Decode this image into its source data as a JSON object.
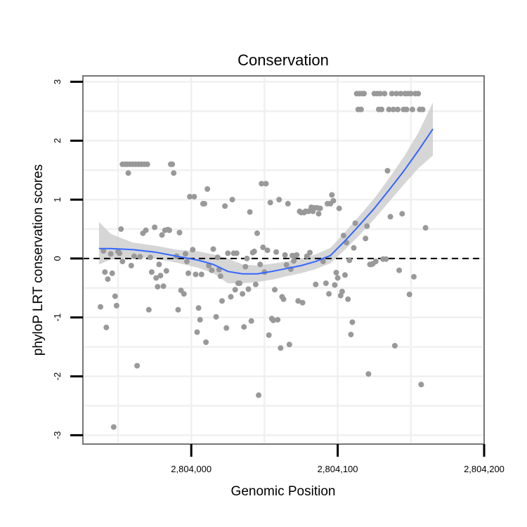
{
  "chart_data": {
    "type": "scatter",
    "title": "Conservation",
    "xlabel": "Genomic Position",
    "ylabel": "phyloP LRT conservation scores",
    "xlim": [
      2803926,
      2804200
    ],
    "ylim": [
      -3.15,
      3.1
    ],
    "x_ticks": [
      {
        "value": 2804000,
        "label": "2,804,000"
      },
      {
        "value": 2804100,
        "label": "2,804,100"
      },
      {
        "value": 2804200,
        "label": "2,804,200"
      }
    ],
    "y_ticks": [
      {
        "value": 3,
        "label": "3"
      },
      {
        "value": 2,
        "label": "2"
      },
      {
        "value": 1,
        "label": "1"
      },
      {
        "value": 0,
        "label": "0"
      },
      {
        "value": -1,
        "label": "-1"
      },
      {
        "value": -2,
        "label": "-2"
      },
      {
        "value": -3,
        "label": "-3"
      }
    ],
    "grid": true,
    "reference_line": {
      "y": 0,
      "style": "dashed"
    },
    "colors": {
      "points": "#999999",
      "smooth": "#3366FF",
      "band": "#cccccc",
      "frame": "#777777"
    },
    "points": [
      [
        2803938,
        -0.82
      ],
      [
        2803940,
        0.13
      ],
      [
        2803941,
        -0.23
      ],
      [
        2803942,
        -1.17
      ],
      [
        2803943,
        -0.35
      ],
      [
        2803945,
        0.08
      ],
      [
        2803946,
        -0.25
      ],
      [
        2803947,
        -2.86
      ],
      [
        2803948,
        -0.64
      ],
      [
        2803949,
        -0.8
      ],
      [
        2803950,
        0.12
      ],
      [
        2803951,
        0.09
      ],
      [
        2803952,
        0.5
      ],
      [
        2803953,
        -0.05
      ],
      [
        2803953,
        1.6
      ],
      [
        2803955,
        1.6
      ],
      [
        2803956,
        1.6
      ],
      [
        2803957,
        1.45
      ],
      [
        2803958,
        1.6
      ],
      [
        2803959,
        -0.12
      ],
      [
        2803960,
        1.6
      ],
      [
        2803961,
        0.04
      ],
      [
        2803962,
        1.6
      ],
      [
        2803963,
        -1.82
      ],
      [
        2803964,
        1.6
      ],
      [
        2803965,
        0.03
      ],
      [
        2803966,
        1.6
      ],
      [
        2803967,
        0.43
      ],
      [
        2803968,
        1.6
      ],
      [
        2803969,
        0.48
      ],
      [
        2803970,
        1.6
      ],
      [
        2803971,
        -0.87
      ],
      [
        2803972,
        0.02
      ],
      [
        2803973,
        -0.23
      ],
      [
        2803975,
        0.53
      ],
      [
        2803976,
        -0.33
      ],
      [
        2803977,
        -0.48
      ],
      [
        2803978,
        -0.1
      ],
      [
        2803979,
        -0.29
      ],
      [
        2803980,
        0.4
      ],
      [
        2803981,
        -0.47
      ],
      [
        2803982,
        0.48
      ],
      [
        2803983,
        -0.21
      ],
      [
        2803984,
        0.49
      ],
      [
        2803985,
        0.48
      ],
      [
        2803986,
        1.6
      ],
      [
        2803987,
        1.6
      ],
      [
        2803988,
        1.45
      ],
      [
        2803990,
        0.04
      ],
      [
        2803991,
        -0.87
      ],
      [
        2803992,
        0.44
      ],
      [
        2803993,
        -0.54
      ],
      [
        2803995,
        -0.6
      ],
      [
        2803996,
        0.08
      ],
      [
        2803997,
        -0.05
      ],
      [
        2803998,
        -0.25
      ],
      [
        2803999,
        1.05
      ],
      [
        2804001,
        0.15
      ],
      [
        2804002,
        1.05
      ],
      [
        2804003,
        -0.27
      ],
      [
        2804004,
        -1.25
      ],
      [
        2804005,
        -0.84
      ],
      [
        2804006,
        -1.04
      ],
      [
        2804007,
        -0.27
      ],
      [
        2804008,
        0.93
      ],
      [
        2804009,
        0.93
      ],
      [
        2804010,
        -1.42
      ],
      [
        2804011,
        1.18
      ],
      [
        2804012,
        -0.12
      ],
      [
        2804014,
        -0.2
      ],
      [
        2804015,
        0.16
      ],
      [
        2804017,
        -0.99
      ],
      [
        2804018,
        0.02
      ],
      [
        2804019,
        -0.19
      ],
      [
        2804020,
        -0.3
      ],
      [
        2804021,
        -0.72
      ],
      [
        2804023,
        0.89
      ],
      [
        2804024,
        -1.18
      ],
      [
        2804025,
        0.09
      ],
      [
        2804027,
        -0.65
      ],
      [
        2804028,
        1.0
      ],
      [
        2804029,
        0.09
      ],
      [
        2804030,
        -0.53
      ],
      [
        2804031,
        0.09
      ],
      [
        2804032,
        -0.42
      ],
      [
        2804033,
        -0.42
      ],
      [
        2804035,
        -0.6
      ],
      [
        2804036,
        -1.16
      ],
      [
        2804037,
        -0.14
      ],
      [
        2804038,
        0.0
      ],
      [
        2804039,
        -0.52
      ],
      [
        2804040,
        0.79
      ],
      [
        2804041,
        -1.06
      ],
      [
        2804042,
        0.1
      ],
      [
        2804043,
        0.12
      ],
      [
        2804044,
        -0.44
      ],
      [
        2804045,
        0.43
      ],
      [
        2804046,
        -2.32
      ],
      [
        2804047,
        -0.1
      ],
      [
        2804048,
        1.27
      ],
      [
        2804049,
        0.19
      ],
      [
        2804050,
        -0.23
      ],
      [
        2804051,
        1.27
      ],
      [
        2804052,
        0.14
      ],
      [
        2804053,
        -1.3
      ],
      [
        2804054,
        0.95
      ],
      [
        2804055,
        -1.02
      ],
      [
        2804056,
        -1.05
      ],
      [
        2804057,
        -0.53
      ],
      [
        2804058,
        0.11
      ],
      [
        2804059,
        -1.04
      ],
      [
        2804060,
        1.0
      ],
      [
        2804061,
        -1.52
      ],
      [
        2804062,
        -0.65
      ],
      [
        2804063,
        -0.69
      ],
      [
        2804064,
        0.06
      ],
      [
        2804065,
        -0.11
      ],
      [
        2804066,
        0.93
      ],
      [
        2804067,
        -1.46
      ],
      [
        2804068,
        -0.18
      ],
      [
        2804069,
        0.05
      ],
      [
        2804070,
        -0.04
      ],
      [
        2804071,
        0.05
      ],
      [
        2804072,
        0.06
      ],
      [
        2804073,
        -0.72
      ],
      [
        2804074,
        0.8
      ],
      [
        2804075,
        0.78
      ],
      [
        2804076,
        -0.75
      ],
      [
        2804077,
        0.78
      ],
      [
        2804078,
        0.8
      ],
      [
        2804079,
        0.04
      ],
      [
        2804080,
        0.8
      ],
      [
        2804081,
        0.1
      ],
      [
        2804082,
        0.87
      ],
      [
        2804083,
        0.8
      ],
      [
        2804084,
        0.86
      ],
      [
        2804085,
        -0.44
      ],
      [
        2804086,
        0.86
      ],
      [
        2804087,
        0.76
      ],
      [
        2804088,
        0.85
      ],
      [
        2804090,
        -0.05
      ],
      [
        2804092,
        -0.42
      ],
      [
        2804093,
        0.93
      ],
      [
        2804094,
        -0.6
      ],
      [
        2804095,
        0.93
      ],
      [
        2804096,
        1.08
      ],
      [
        2804097,
        0.98
      ],
      [
        2804098,
        -0.45
      ],
      [
        2804099,
        -0.24
      ],
      [
        2804100,
        -0.33
      ],
      [
        2804101,
        0.85
      ],
      [
        2804102,
        -0.63
      ],
      [
        2804103,
        -0.56
      ],
      [
        2804104,
        0.39
      ],
      [
        2804105,
        -0.28
      ],
      [
        2804106,
        0.27
      ],
      [
        2804107,
        -0.69
      ],
      [
        2804108,
        -0.03
      ],
      [
        2804109,
        -1.29
      ],
      [
        2804110,
        -1.08
      ],
      [
        2804111,
        0.18
      ],
      [
        2804112,
        0.6
      ],
      [
        2804113,
        2.8
      ],
      [
        2804114,
        2.53
      ],
      [
        2804115,
        2.8
      ],
      [
        2804116,
        2.53
      ],
      [
        2804117,
        2.8
      ],
      [
        2804118,
        2.8
      ],
      [
        2804119,
        0.34
      ],
      [
        2804120,
        0.55
      ],
      [
        2804121,
        -1.96
      ],
      [
        2804122,
        -0.1
      ],
      [
        2804123,
        -0.1
      ],
      [
        2804124,
        -0.09
      ],
      [
        2804125,
        2.8
      ],
      [
        2804126,
        -0.05
      ],
      [
        2804127,
        2.8
      ],
      [
        2804128,
        2.53
      ],
      [
        2804129,
        2.8
      ],
      [
        2804130,
        2.53
      ],
      [
        2804131,
        -0.01
      ],
      [
        2804132,
        2.8
      ],
      [
        2804133,
        -0.01
      ],
      [
        2804134,
        1.49
      ],
      [
        2804135,
        2.53
      ],
      [
        2804136,
        0.71
      ],
      [
        2804137,
        2.8
      ],
      [
        2804138,
        2.53
      ],
      [
        2804139,
        -1.48
      ],
      [
        2804140,
        2.8
      ],
      [
        2804141,
        2.53
      ],
      [
        2804142,
        -0.2
      ],
      [
        2804143,
        2.8
      ],
      [
        2804144,
        0.76
      ],
      [
        2804145,
        2.53
      ],
      [
        2804146,
        2.8
      ],
      [
        2804147,
        2.53
      ],
      [
        2804148,
        2.8
      ],
      [
        2804149,
        -0.61
      ],
      [
        2804150,
        2.8
      ],
      [
        2804151,
        2.53
      ],
      [
        2804152,
        -0.31
      ],
      [
        2804153,
        2.8
      ],
      [
        2804155,
        2.8
      ],
      [
        2804156,
        2.53
      ],
      [
        2804157,
        -2.14
      ],
      [
        2804158,
        2.53
      ],
      [
        2804160,
        0.52
      ]
    ],
    "smooth": [
      {
        "x": 2803937,
        "y": 0.17,
        "lo": -0.1,
        "hi": 0.62
      },
      {
        "x": 2803945,
        "y": 0.17,
        "lo": -0.02,
        "hi": 0.42
      },
      {
        "x": 2803960,
        "y": 0.15,
        "lo": 0.03,
        "hi": 0.27
      },
      {
        "x": 2803975,
        "y": 0.11,
        "lo": 0.0,
        "hi": 0.22
      },
      {
        "x": 2803990,
        "y": 0.04,
        "lo": -0.07,
        "hi": 0.15
      },
      {
        "x": 2804005,
        "y": -0.03,
        "lo": -0.16,
        "hi": 0.12
      },
      {
        "x": 2804015,
        "y": -0.1,
        "lo": -0.25,
        "hi": 0.07
      },
      {
        "x": 2804025,
        "y": -0.22,
        "lo": -0.42,
        "hi": 0.0
      },
      {
        "x": 2804035,
        "y": -0.26,
        "lo": -0.42,
        "hi": -0.1
      },
      {
        "x": 2804045,
        "y": -0.26,
        "lo": -0.4,
        "hi": -0.12
      },
      {
        "x": 2804055,
        "y": -0.22,
        "lo": -0.36,
        "hi": -0.09
      },
      {
        "x": 2804065,
        "y": -0.17,
        "lo": -0.3,
        "hi": -0.05
      },
      {
        "x": 2804075,
        "y": -0.12,
        "lo": -0.25,
        "hi": 0.0
      },
      {
        "x": 2804085,
        "y": -0.05,
        "lo": -0.18,
        "hi": 0.07
      },
      {
        "x": 2804095,
        "y": 0.05,
        "lo": -0.08,
        "hi": 0.18
      },
      {
        "x": 2804105,
        "y": 0.3,
        "lo": 0.15,
        "hi": 0.45
      },
      {
        "x": 2804115,
        "y": 0.57,
        "lo": 0.4,
        "hi": 0.73
      },
      {
        "x": 2804125,
        "y": 0.85,
        "lo": 0.67,
        "hi": 1.02
      },
      {
        "x": 2804135,
        "y": 1.16,
        "lo": 0.96,
        "hi": 1.36
      },
      {
        "x": 2804145,
        "y": 1.48,
        "lo": 1.25,
        "hi": 1.72
      },
      {
        "x": 2804155,
        "y": 1.83,
        "lo": 1.53,
        "hi": 2.13
      },
      {
        "x": 2804165,
        "y": 2.2,
        "lo": 1.75,
        "hi": 2.65
      }
    ]
  }
}
